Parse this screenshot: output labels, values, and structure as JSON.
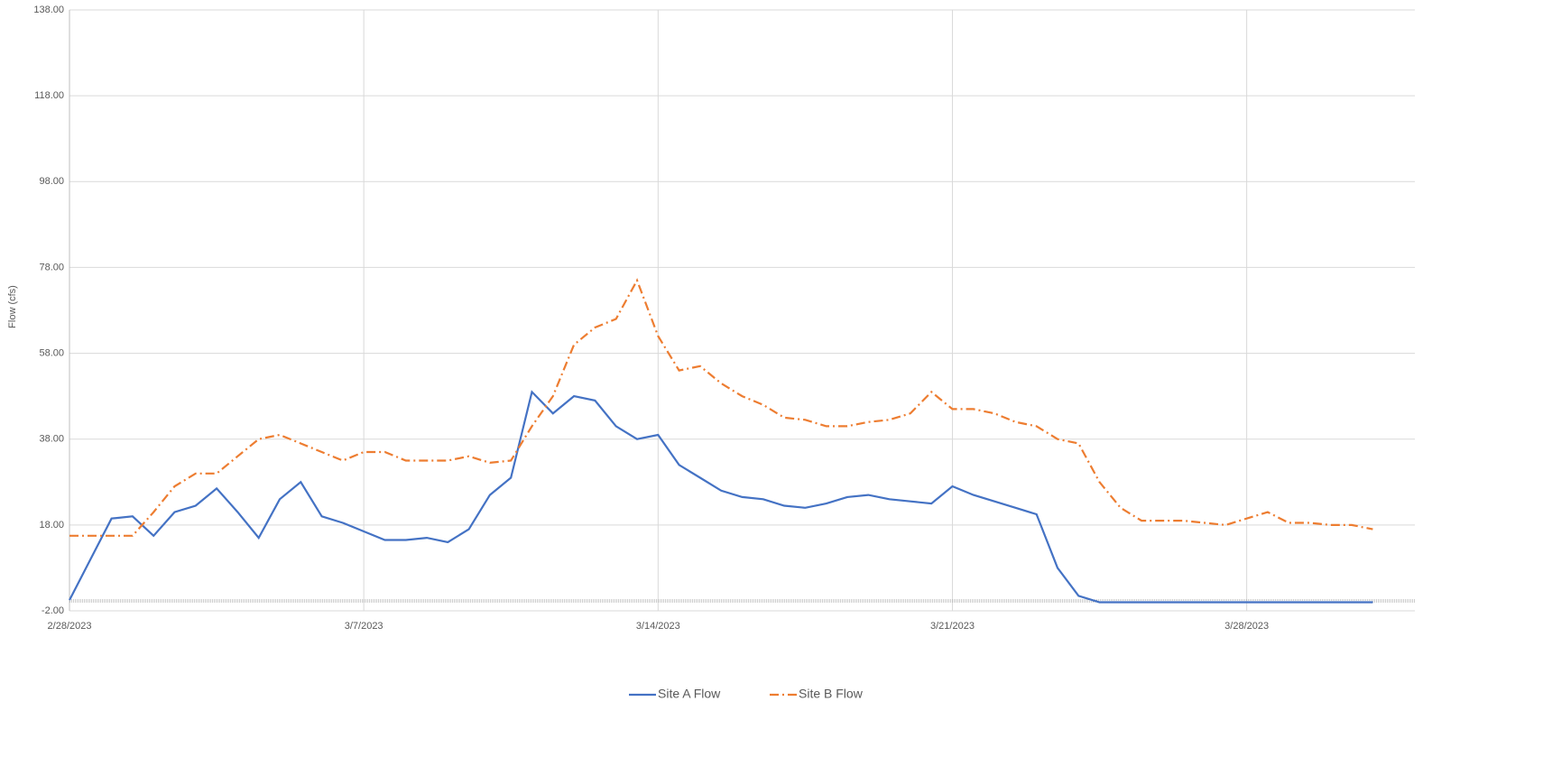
{
  "chart_data": {
    "type": "line",
    "y_label": "Flow  (cfs)",
    "x": [
      "2023-02-28T00:00",
      "2023-02-28T12:00",
      "2023-03-01T00:00",
      "2023-03-01T12:00",
      "2023-03-02T00:00",
      "2023-03-02T12:00",
      "2023-03-03T00:00",
      "2023-03-03T12:00",
      "2023-03-04T00:00",
      "2023-03-04T12:00",
      "2023-03-05T00:00",
      "2023-03-05T12:00",
      "2023-03-06T00:00",
      "2023-03-06T12:00",
      "2023-03-07T00:00",
      "2023-03-07T12:00",
      "2023-03-08T00:00",
      "2023-03-08T12:00",
      "2023-03-09T00:00",
      "2023-03-09T12:00",
      "2023-03-10T00:00",
      "2023-03-10T12:00",
      "2023-03-11T00:00",
      "2023-03-11T12:00",
      "2023-03-12T00:00",
      "2023-03-12T12:00",
      "2023-03-13T00:00",
      "2023-03-13T12:00",
      "2023-03-14T00:00",
      "2023-03-14T12:00",
      "2023-03-15T00:00",
      "2023-03-15T12:00",
      "2023-03-16T00:00",
      "2023-03-16T12:00",
      "2023-03-17T00:00",
      "2023-03-17T12:00",
      "2023-03-18T00:00",
      "2023-03-18T12:00",
      "2023-03-19T00:00",
      "2023-03-19T12:00",
      "2023-03-20T00:00",
      "2023-03-20T12:00",
      "2023-03-21T00:00",
      "2023-03-21T12:00",
      "2023-03-22T00:00",
      "2023-03-22T12:00",
      "2023-03-23T00:00",
      "2023-03-23T12:00",
      "2023-03-24T00:00",
      "2023-03-24T12:00",
      "2023-03-25T00:00",
      "2023-03-25T12:00",
      "2023-03-26T00:00",
      "2023-03-26T12:00",
      "2023-03-27T00:00",
      "2023-03-27T12:00",
      "2023-03-28T00:00",
      "2023-03-28T12:00",
      "2023-03-29T00:00",
      "2023-03-29T12:00",
      "2023-03-30T00:00",
      "2023-03-30T12:00",
      "2023-03-31T00:00"
    ],
    "series": [
      {
        "name": "Site A Flow",
        "color": "#4472c4",
        "dash": "solid",
        "values": [
          0.5,
          10,
          19.5,
          20,
          15.5,
          21,
          22.5,
          26.5,
          21,
          15,
          24,
          28,
          20,
          18.5,
          16.5,
          14.5,
          14.5,
          15,
          14,
          17,
          25,
          29,
          49,
          44,
          48,
          47,
          41,
          38,
          39,
          32,
          29,
          26,
          24.5,
          24,
          22.5,
          22,
          23,
          24.5,
          25,
          24,
          23.5,
          23,
          27,
          25,
          23.5,
          22,
          20.5,
          8,
          1.5,
          0,
          0,
          0,
          0,
          0,
          0,
          0,
          0,
          0,
          0,
          0,
          0,
          0,
          0
        ]
      },
      {
        "name": "Site B Flow",
        "color": "#ed7d31",
        "dash": "dashdot",
        "values": [
          15.5,
          15.5,
          15.5,
          15.5,
          21,
          27,
          30,
          30,
          34,
          38,
          39,
          37,
          35,
          33,
          35,
          35,
          33,
          33,
          33,
          34,
          32.5,
          33,
          41,
          48,
          60,
          64,
          66,
          75,
          62,
          54,
          55,
          51,
          48,
          46,
          43,
          42.5,
          41,
          41,
          42,
          42.5,
          44,
          49,
          45,
          45,
          44,
          42,
          41,
          38,
          37,
          28,
          22,
          19,
          19,
          19,
          18.5,
          18,
          19.5,
          21,
          18.5,
          18.5,
          18,
          18,
          17
        ]
      }
    ],
    "xlim": [
      "2023-02-28T00:00",
      "2023-04-01T00:00"
    ],
    "xticks": [
      {
        "value": "2023-02-28T00:00",
        "label": "2/28/2023"
      },
      {
        "value": "2023-03-07T00:00",
        "label": "3/7/2023"
      },
      {
        "value": "2023-03-14T00:00",
        "label": "3/14/2023"
      },
      {
        "value": "2023-03-21T00:00",
        "label": "3/21/2023"
      },
      {
        "value": "2023-03-28T00:00",
        "label": "3/28/2023"
      }
    ],
    "ylim": [
      -2,
      138
    ],
    "yticks": [
      {
        "value": -2,
        "label": "-2.00"
      },
      {
        "value": 18,
        "label": "18.00"
      },
      {
        "value": 38,
        "label": "38.00"
      },
      {
        "value": 58,
        "label": "58.00"
      },
      {
        "value": 78,
        "label": "78.00"
      },
      {
        "value": 98,
        "label": "98.00"
      },
      {
        "value": 118,
        "label": "118.00"
      },
      {
        "value": 138,
        "label": "138.00"
      }
    ],
    "grid": true,
    "legend": "bottom"
  }
}
